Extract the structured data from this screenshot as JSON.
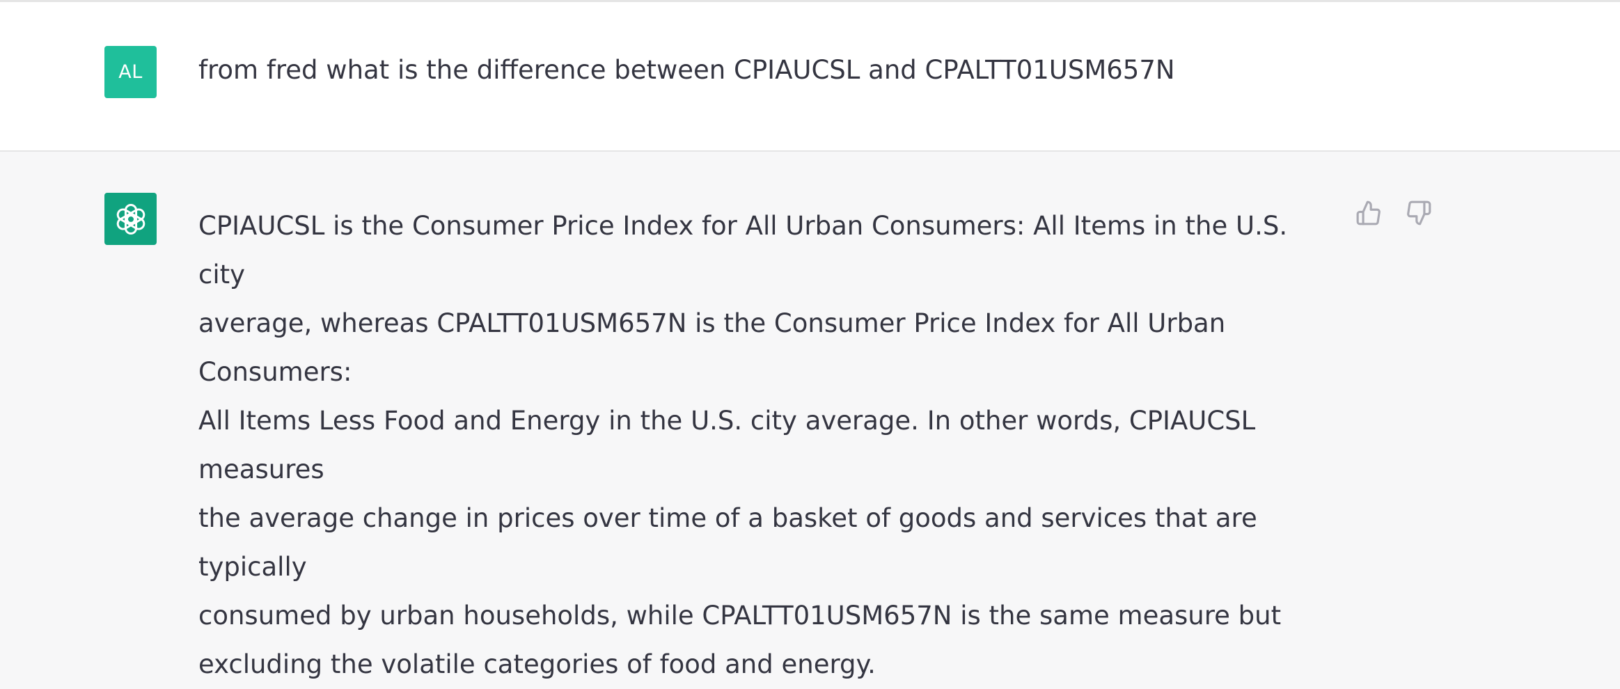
{
  "conversation": {
    "user_message": {
      "avatar_initials": "AL",
      "avatar_color": "#1fbf9b",
      "text": "from fred what is the difference between CPIAUCSL and CPALTT01USM657N"
    },
    "assistant_message": {
      "avatar_icon": "openai-logo-icon",
      "avatar_color": "#10a37f",
      "text": "CPIAUCSL is the Consumer Price Index for All Urban Consumers: All Items in the U.S. city\naverage, whereas CPALTT01USM657N is the Consumer Price Index for All Urban Consumers:\nAll Items Less Food and Energy in the U.S. city average. In other words, CPIAUCSL measures\nthe average change in prices over time of a basket of goods and services that are typically\nconsumed by urban households, while CPALTT01USM657N is the same measure but\nexcluding the volatile categories of food and energy.",
      "feedback": {
        "thumbs_up_icon": "thumbs-up-icon",
        "thumbs_down_icon": "thumbs-down-icon"
      }
    }
  }
}
